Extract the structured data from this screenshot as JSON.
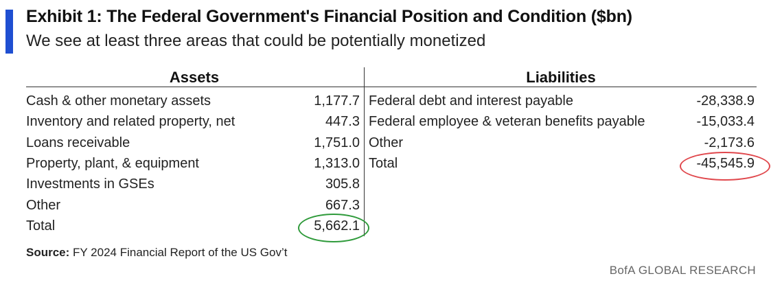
{
  "header": {
    "title": "Exhibit 1: The Federal Government's Financial Position and Condition ($bn)",
    "subtitle": "We see at least three areas that could be potentially monetized",
    "accent_color": "#1f4fd1"
  },
  "assets": {
    "heading": "Assets",
    "rows": [
      {
        "label": "Cash & other monetary assets",
        "value": "1,177.7"
      },
      {
        "label": "Inventory and related property, net",
        "value": "447.3"
      },
      {
        "label": "Loans receivable",
        "value": "1,751.0"
      },
      {
        "label": "Property, plant, & equipment",
        "value": "1,313.0"
      },
      {
        "label": "Investments in GSEs",
        "value": "305.8"
      },
      {
        "label": "Other",
        "value": "667.3"
      },
      {
        "label": "Total",
        "value": "5,662.1"
      }
    ],
    "highlight_color": "#2e9a3a"
  },
  "liabilities": {
    "heading": "Liabilities",
    "rows": [
      {
        "label": "Federal debt and interest payable",
        "value": "-28,338.9"
      },
      {
        "label": "Federal employee & veteran benefits payable",
        "value": "-15,033.4"
      },
      {
        "label": "Other",
        "value": "-2,173.6"
      },
      {
        "label": "Total",
        "value": "-45,545.9"
      }
    ],
    "highlight_color": "#e0474c"
  },
  "footer": {
    "source_label": "Source:",
    "source_text": " FY 2024 Financial Report of the US Gov’t",
    "brand": "BofA GLOBAL RESEARCH"
  }
}
